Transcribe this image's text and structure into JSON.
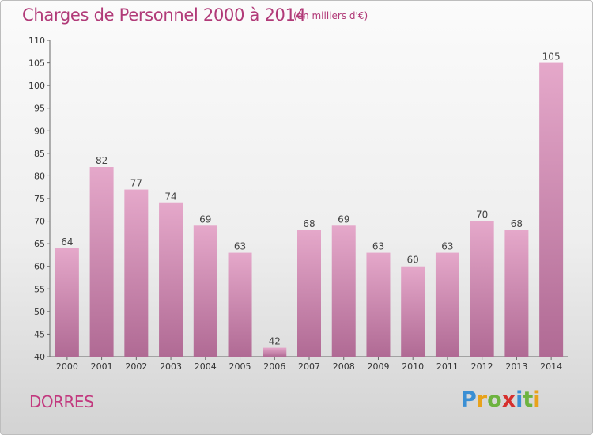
{
  "header": {
    "title": "Charges de Personnel 2000 à 2014",
    "subtitle": "(en milliers d'€)"
  },
  "footer": {
    "place": "DORRES",
    "logo": {
      "letters": [
        "P",
        "r",
        "o",
        "x",
        "i",
        "t",
        "i"
      ],
      "colors": [
        "#3a8fd4",
        "#e8a21b",
        "#6db33f",
        "#d6302e",
        "#3a8fd4",
        "#6db33f",
        "#e8a21b"
      ]
    }
  },
  "chart_data": {
    "type": "bar",
    "categories": [
      "2000",
      "2001",
      "2002",
      "2003",
      "2004",
      "2005",
      "2006",
      "2007",
      "2008",
      "2009",
      "2010",
      "2011",
      "2012",
      "2013",
      "2014"
    ],
    "values": [
      64,
      82,
      77,
      74,
      69,
      63,
      42,
      68,
      69,
      63,
      60,
      63,
      70,
      68,
      105
    ],
    "title": "Charges de Personnel 2000 à 2014",
    "subtitle": "(en milliers d'€)",
    "xlabel": "",
    "ylabel": "",
    "ylim": [
      40,
      110
    ],
    "yticks": [
      40,
      45,
      50,
      55,
      60,
      65,
      70,
      75,
      80,
      85,
      90,
      95,
      100,
      105,
      110
    ],
    "grid": false,
    "bar_color": "#d98cb4"
  }
}
